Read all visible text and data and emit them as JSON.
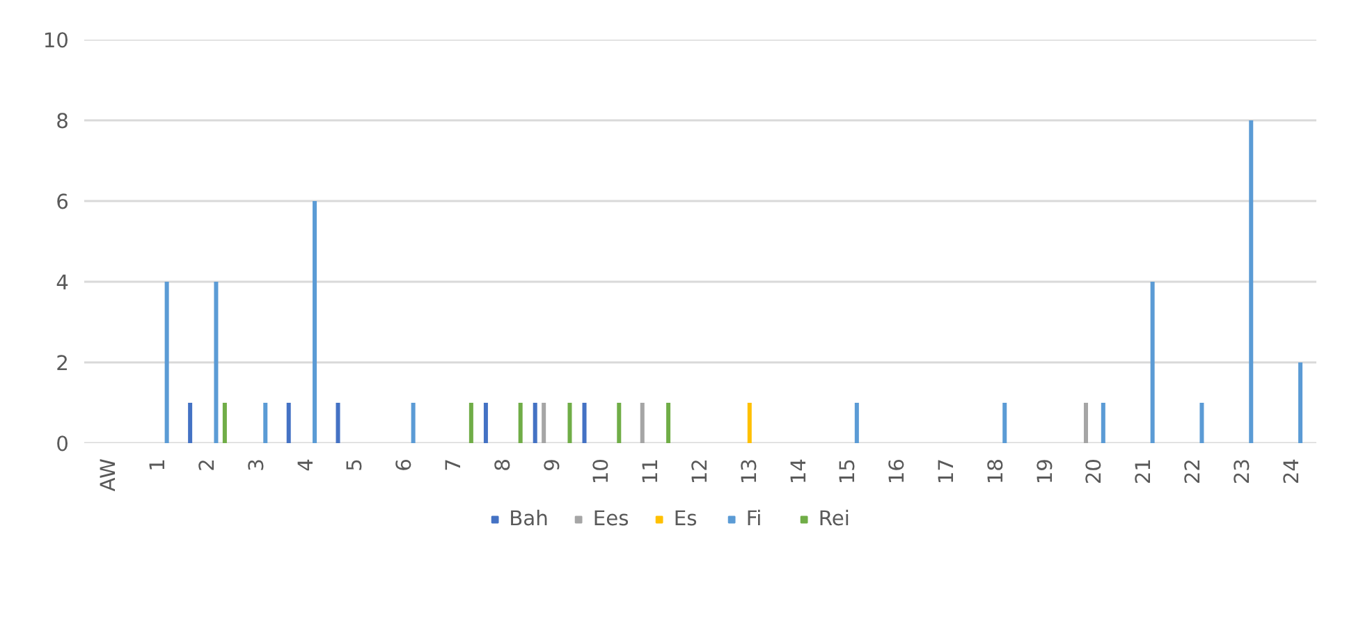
{
  "chart_data": {
    "type": "bar",
    "categories": [
      "AW",
      "1",
      "2",
      "3",
      "4",
      "5",
      "6",
      "7",
      "8",
      "9",
      "10",
      "11",
      "12",
      "13",
      "14",
      "15",
      "16",
      "17",
      "18",
      "19",
      "20",
      "21",
      "22",
      "23",
      "24"
    ],
    "series": [
      {
        "name": "Bah",
        "color": "#4472c4",
        "values": [
          0,
          0,
          1,
          0,
          1,
          1,
          0,
          0,
          1,
          1,
          1,
          0,
          0,
          0,
          0,
          0,
          0,
          0,
          0,
          0,
          0,
          0,
          0,
          0,
          0
        ]
      },
      {
        "name": "Ees",
        "color": "#a5a5a5",
        "values": [
          0,
          0,
          0,
          0,
          0,
          0,
          0,
          0,
          0,
          1,
          0,
          1,
          0,
          0,
          0,
          0,
          0,
          0,
          0,
          0,
          1,
          0,
          0,
          0,
          0
        ]
      },
      {
        "name": "Es",
        "color": "#ffc000",
        "values": [
          0,
          0,
          0,
          0,
          0,
          0,
          0,
          0,
          0,
          0,
          0,
          0,
          0,
          1,
          0,
          0,
          0,
          0,
          0,
          0,
          0,
          0,
          0,
          0,
          0
        ]
      },
      {
        "name": "Fi",
        "color": "#5b9bd5",
        "values": [
          0,
          4,
          4,
          1,
          6,
          0,
          1,
          0,
          0,
          0,
          0,
          0,
          0,
          0,
          0,
          1,
          0,
          0,
          1,
          0,
          1,
          4,
          1,
          8,
          2
        ]
      },
      {
        "name": "Rei",
        "color": "#70ad47",
        "values": [
          0,
          0,
          1,
          0,
          0,
          0,
          0,
          1,
          1,
          1,
          1,
          1,
          0,
          0,
          0,
          0,
          0,
          0,
          0,
          0,
          0,
          0,
          0,
          0,
          0
        ]
      }
    ],
    "ylim": [
      0,
      10
    ],
    "yticks": [
      0,
      2,
      4,
      6,
      8,
      10
    ],
    "grid": "y",
    "legend": "bottom"
  }
}
